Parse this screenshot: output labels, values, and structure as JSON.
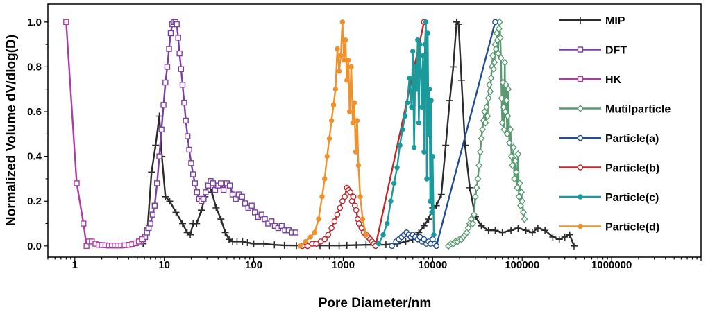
{
  "chart_data": {
    "type": "line",
    "xlabel": "Pore Diameter/nm",
    "ylabel": "Normalized Volume dV/dlog(D)",
    "xscale": "log",
    "xlim": [
      0.5,
      10000000
    ],
    "ylim": [
      -0.05,
      1.08
    ],
    "xticks": [
      1,
      10,
      100,
      1000,
      10000,
      100000,
      1000000
    ],
    "xtick_labels": [
      "1",
      "10",
      "100",
      "1000",
      "10000",
      "100000",
      "1000000"
    ],
    "yticks": [
      0,
      0.2,
      0.4,
      0.6,
      0.8,
      1.0
    ],
    "ytick_labels": [
      "0.0",
      "0.2",
      "0.4",
      "0.6",
      "0.8",
      "1.0"
    ],
    "grid": false,
    "legend_position": "right",
    "series": [
      {
        "name": "MIP",
        "color": "#2b2b2b",
        "marker": "plus",
        "x": [
          5.8,
          6.5,
          7.2,
          8.0,
          8.8,
          9.4,
          10.3,
          11.5,
          13.5,
          16,
          18,
          19.5,
          21,
          23,
          26,
          28.5,
          31,
          34,
          38,
          43,
          48,
          53,
          58,
          65,
          75,
          85,
          100,
          130,
          170,
          220,
          300,
          400,
          550,
          700,
          900,
          1100,
          1400,
          1800,
          2300,
          3000,
          4000,
          5000,
          6000,
          7000,
          8000,
          9000,
          10000,
          11000,
          12500,
          14000,
          15500,
          17000,
          18500,
          19500,
          21000,
          23000,
          26000,
          30000,
          35000,
          42000,
          50000,
          60000,
          75000,
          90000,
          110000,
          130000,
          150000,
          180000,
          220000,
          260000,
          300000,
          340000,
          380000
        ],
        "y": [
          0.01,
          0.08,
          0.33,
          0.45,
          0.58,
          0.4,
          0.22,
          0.2,
          0.15,
          0.1,
          0.06,
          0.05,
          0.1,
          0.1,
          0.16,
          0.22,
          0.28,
          0.24,
          0.17,
          0.12,
          0.06,
          0.03,
          0.02,
          0.02,
          0.02,
          0.015,
          0.01,
          0.01,
          0.005,
          0.003,
          0.002,
          0.002,
          0.002,
          0.002,
          0.002,
          0.003,
          0.004,
          0.005,
          0.005,
          0.006,
          0.01,
          0.02,
          0.03,
          0.06,
          0.09,
          0.12,
          0.17,
          0.18,
          0.23,
          0.45,
          0.65,
          0.8,
          1.0,
          0.99,
          0.74,
          0.45,
          0.26,
          0.13,
          0.09,
          0.07,
          0.07,
          0.06,
          0.07,
          0.08,
          0.07,
          0.06,
          0.08,
          0.07,
          0.04,
          0.03,
          0.04,
          0.05,
          0.0
        ]
      },
      {
        "name": "DFT",
        "color": "#7b3fa0",
        "marker": "square",
        "x": [
          5.5,
          5.8,
          6.1,
          6.4,
          6.7,
          7.0,
          7.4,
          7.8,
          8.3,
          8.8,
          9.3,
          9.8,
          10.3,
          10.8,
          11.3,
          11.8,
          12.3,
          12.8,
          13.3,
          13.8,
          14.3,
          14.8,
          15.4,
          16.0,
          16.7,
          17.4,
          18.2,
          19.0,
          20.0,
          21.0,
          22.0,
          23.2,
          24.5,
          26,
          27.5,
          29,
          31,
          33,
          35,
          37,
          40,
          43,
          46,
          50,
          54,
          58,
          63,
          68,
          74,
          80,
          87,
          95,
          103,
          112,
          122,
          133,
          145,
          158,
          172,
          188,
          205,
          224,
          245,
          268,
          293
        ],
        "y": [
          0.02,
          0.03,
          0.04,
          0.06,
          0.08,
          0.1,
          0.14,
          0.18,
          0.28,
          0.4,
          0.52,
          0.63,
          0.73,
          0.8,
          0.88,
          0.95,
          0.99,
          1.0,
          1.0,
          0.99,
          0.93,
          0.86,
          0.79,
          0.72,
          0.64,
          0.56,
          0.49,
          0.43,
          0.37,
          0.32,
          0.28,
          0.24,
          0.21,
          0.2,
          0.21,
          0.24,
          0.27,
          0.29,
          0.28,
          0.25,
          0.27,
          0.28,
          0.25,
          0.28,
          0.27,
          0.23,
          0.21,
          0.23,
          0.22,
          0.19,
          0.17,
          0.18,
          0.15,
          0.13,
          0.14,
          0.12,
          0.1,
          0.11,
          0.09,
          0.08,
          0.09,
          0.07,
          0.07,
          0.06,
          0.06
        ]
      },
      {
        "name": "HK",
        "color": "#b03aa8",
        "marker": "square",
        "x": [
          0.8,
          1.05,
          1.25,
          1.35,
          1.45,
          1.55,
          1.7,
          1.85,
          2.0,
          2.2,
          2.4,
          2.6,
          2.8,
          3.0,
          3.3,
          3.6,
          4.0,
          4.4,
          4.8,
          5.2,
          5.6
        ],
        "y": [
          1.0,
          0.28,
          0.1,
          0.0,
          0.02,
          0.02,
          0.01,
          0.005,
          0.004,
          0.003,
          0.002,
          0.002,
          0.002,
          0.002,
          0.002,
          0.003,
          0.005,
          0.008,
          0.012,
          0.02,
          0.03
        ]
      },
      {
        "name": "Mutilparticle",
        "color": "#5a9a70",
        "marker": "diamond",
        "x": [
          15000,
          16000,
          17000,
          18000,
          19000,
          20000,
          21000,
          22000,
          23000,
          24000,
          25000,
          26000,
          27000,
          28000,
          29000,
          30000,
          31000,
          32000,
          33000,
          34000,
          35000,
          36000,
          37000,
          38000,
          39000,
          40000,
          41000,
          42000,
          43000,
          44000,
          45000,
          46000,
          47000,
          48000,
          49000,
          50000,
          51000,
          52000,
          53000,
          54000,
          55000,
          56000,
          57000,
          58000,
          59000,
          60000,
          61000,
          62000,
          63000,
          64000,
          65000,
          66000,
          67000,
          68000,
          69000,
          70000,
          72000,
          74000,
          76000,
          78000,
          80000,
          82000,
          84000,
          86000,
          88000,
          90000,
          92000,
          94000,
          96000,
          98000,
          100000,
          103000,
          106000
        ],
        "y": [
          0.0,
          0.01,
          0.01,
          0.02,
          0.02,
          0.03,
          0.03,
          0.04,
          0.05,
          0.06,
          0.08,
          0.1,
          0.12,
          0.1,
          0.14,
          0.22,
          0.26,
          0.3,
          0.36,
          0.42,
          0.48,
          0.52,
          0.56,
          0.6,
          0.55,
          0.62,
          0.58,
          0.66,
          0.72,
          0.69,
          0.75,
          0.8,
          0.85,
          0.79,
          0.82,
          0.9,
          0.88,
          0.95,
          0.92,
          0.86,
          0.97,
          1.0,
          0.93,
          0.84,
          0.66,
          0.55,
          0.73,
          0.62,
          0.52,
          0.82,
          0.6,
          0.72,
          0.65,
          0.5,
          0.58,
          0.7,
          0.46,
          0.52,
          0.4,
          0.36,
          0.44,
          0.3,
          0.38,
          0.33,
          0.26,
          0.41,
          0.22,
          0.28,
          0.18,
          0.24,
          0.2,
          0.15,
          0.12
        ]
      },
      {
        "name": "Particle(a)",
        "color": "#1f4e96",
        "marker": "circle",
        "x": [
          3500,
          3900,
          4200,
          4500,
          4800,
          5100,
          5400,
          5700,
          6000,
          6400,
          6800,
          7200,
          7600,
          8000,
          8500,
          9000,
          9500,
          10000,
          10500,
          11000,
          50000
        ],
        "y": [
          0.0,
          0.02,
          0.03,
          0.04,
          0.05,
          0.06,
          0.05,
          0.04,
          0.05,
          0.04,
          0.03,
          0.04,
          0.02,
          0.03,
          0.01,
          0.02,
          0.01,
          0.03,
          0.01,
          0.0,
          1.0
        ]
      },
      {
        "name": "Particle(b)",
        "color": "#c0282d",
        "marker": "circle",
        "x": [
          350,
          400,
          450,
          500,
          560,
          620,
          680,
          740,
          800,
          860,
          920,
          980,
          1040,
          1100,
          1150,
          1200,
          1250,
          1300,
          1350,
          1400,
          1450,
          1500,
          1600,
          1700,
          1800,
          1900,
          2000,
          2100,
          2200,
          2300,
          8000
        ],
        "y": [
          0.0,
          0.0,
          0.01,
          0.01,
          0.02,
          0.03,
          0.05,
          0.08,
          0.11,
          0.14,
          0.17,
          0.2,
          0.22,
          0.26,
          0.25,
          0.24,
          0.2,
          0.22,
          0.18,
          0.16,
          0.12,
          0.1,
          0.08,
          0.06,
          0.05,
          0.04,
          0.03,
          0.02,
          0.01,
          0.0,
          1.0
        ]
      },
      {
        "name": "Particle(c)",
        "color": "#1a9a9a",
        "marker": "dot",
        "x": [
          2500,
          2800,
          3100,
          3400,
          3700,
          4000,
          4300,
          4600,
          4900,
          5200,
          5500,
          5800,
          6000,
          6200,
          6400,
          6600,
          6800,
          7000,
          7200,
          7400,
          7600,
          7800,
          8000,
          8200,
          8400,
          8600,
          8800,
          9000,
          9200,
          9400,
          9600,
          9800,
          10000,
          10300
        ],
        "y": [
          0.01,
          0.05,
          0.1,
          0.2,
          0.28,
          0.35,
          0.45,
          0.52,
          0.58,
          0.64,
          0.75,
          0.62,
          0.87,
          0.44,
          0.8,
          0.7,
          0.92,
          0.55,
          0.9,
          0.78,
          0.62,
          0.85,
          0.42,
          0.9,
          1.0,
          0.3,
          0.95,
          0.5,
          0.7,
          0.2,
          0.65,
          0.15,
          0.4,
          0.05
        ]
      },
      {
        "name": "Particle(d)",
        "color": "#f0922c",
        "marker": "dot",
        "x": [
          330,
          380,
          430,
          480,
          530,
          580,
          620,
          660,
          700,
          740,
          780,
          820,
          860,
          900,
          940,
          980,
          1020,
          1060,
          1100,
          1140,
          1180,
          1230,
          1280,
          1330,
          1380,
          1430,
          1480,
          1550,
          1650,
          1800
        ],
        "y": [
          0.0,
          0.02,
          0.04,
          0.06,
          0.12,
          0.22,
          0.3,
          0.4,
          0.48,
          0.56,
          0.63,
          0.7,
          0.88,
          0.78,
          0.85,
          1.0,
          0.83,
          0.92,
          0.74,
          0.83,
          0.6,
          0.8,
          0.55,
          0.64,
          0.42,
          0.56,
          0.36,
          0.22,
          0.12,
          0.05
        ]
      }
    ]
  }
}
